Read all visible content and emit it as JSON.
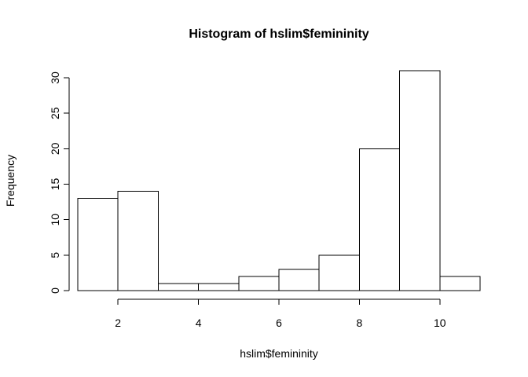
{
  "chart_data": {
    "type": "bar",
    "title": "Histogram of hslim$femininity",
    "xlabel": "hslim$femininity",
    "ylabel": "Frequency",
    "bins": [
      {
        "x0": 1,
        "x1": 2,
        "count": 13
      },
      {
        "x0": 2,
        "x1": 3,
        "count": 14
      },
      {
        "x0": 3,
        "x1": 4,
        "count": 1
      },
      {
        "x0": 4,
        "x1": 5,
        "count": 1
      },
      {
        "x0": 5,
        "x1": 6,
        "count": 2
      },
      {
        "x0": 6,
        "x1": 7,
        "count": 3
      },
      {
        "x0": 7,
        "x1": 8,
        "count": 5
      },
      {
        "x0": 8,
        "x1": 9,
        "count": 20
      },
      {
        "x0": 9,
        "x1": 10,
        "count": 31
      },
      {
        "x0": 10,
        "x1": 11,
        "count": 2
      }
    ],
    "xticks": [
      2,
      4,
      6,
      8,
      10
    ],
    "yticks": [
      0,
      5,
      10,
      15,
      20,
      25,
      30
    ],
    "xlim": [
      1,
      11
    ],
    "ylim": [
      0,
      31
    ],
    "grid": false,
    "bar_fill": "#ffffff",
    "bar_stroke": "#000000"
  }
}
